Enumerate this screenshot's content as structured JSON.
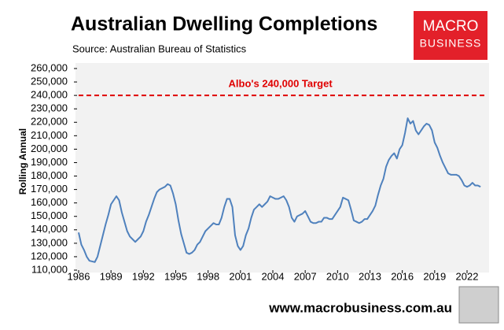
{
  "chart_data": {
    "type": "line",
    "title": "Australian Dwelling Completions",
    "subtitle": "Source: Australian Bureau of Statistics",
    "ylabel": "Rolling Annual",
    "logo": {
      "line1": "MACRO",
      "line2": "BUSINESS"
    },
    "footer": "www.macrobusiness.com.au",
    "target": {
      "value": 240000,
      "label": "Albo's 240,000 Target",
      "color": "#e00000"
    },
    "xlim": [
      1986,
      2023.75
    ],
    "xticks": [
      1986,
      1989,
      1992,
      1995,
      1998,
      2001,
      2004,
      2007,
      2010,
      2013,
      2016,
      2019,
      2022
    ],
    "ylim": [
      110000,
      260000
    ],
    "yticks": [
      {
        "value": 110000,
        "label": "110,000"
      },
      {
        "value": 120000,
        "label": "120,000"
      },
      {
        "value": 130000,
        "label": "130,000"
      },
      {
        "value": 140000,
        "label": "140,000"
      },
      {
        "value": 150000,
        "label": "150,000"
      },
      {
        "value": 160000,
        "label": "160,000"
      },
      {
        "value": 170000,
        "label": "170,000"
      },
      {
        "value": 180000,
        "label": "180,000"
      },
      {
        "value": 190000,
        "label": "190,000"
      },
      {
        "value": 200000,
        "label": "200,000"
      },
      {
        "value": 210000,
        "label": "210,000"
      },
      {
        "value": 220000,
        "label": "220,000"
      },
      {
        "value": 230000,
        "label": "230,000"
      },
      {
        "value": 240000,
        "label": "240,000"
      },
      {
        "value": 250000,
        "label": "250,000"
      },
      {
        "value": 260000,
        "label": "260,000"
      }
    ],
    "color": "#4f81bd",
    "x": [
      1986,
      1986.25,
      1986.5,
      1986.75,
      1987,
      1987.25,
      1987.5,
      1987.75,
      1988,
      1988.25,
      1988.5,
      1988.75,
      1989,
      1989.25,
      1989.5,
      1989.75,
      1990,
      1990.25,
      1990.5,
      1990.75,
      1991,
      1991.25,
      1991.5,
      1991.75,
      1992,
      1992.25,
      1992.5,
      1992.75,
      1993,
      1993.25,
      1993.5,
      1993.75,
      1994,
      1994.25,
      1994.5,
      1994.75,
      1995,
      1995.25,
      1995.5,
      1995.75,
      1996,
      1996.25,
      1996.5,
      1996.75,
      1997,
      1997.25,
      1997.5,
      1997.75,
      1998,
      1998.25,
      1998.5,
      1998.75,
      1999,
      1999.25,
      1999.5,
      1999.75,
      2000,
      2000.25,
      2000.5,
      2000.75,
      2001,
      2001.25,
      2001.5,
      2001.75,
      2002,
      2002.25,
      2002.5,
      2002.75,
      2003,
      2003.25,
      2003.5,
      2003.75,
      2004,
      2004.25,
      2004.5,
      2004.75,
      2005,
      2005.25,
      2005.5,
      2005.75,
      2006,
      2006.25,
      2006.5,
      2006.75,
      2007,
      2007.25,
      2007.5,
      2007.75,
      2008,
      2008.25,
      2008.5,
      2008.75,
      2009,
      2009.25,
      2009.5,
      2009.75,
      2010,
      2010.25,
      2010.5,
      2010.75,
      2011,
      2011.25,
      2011.5,
      2011.75,
      2012,
      2012.25,
      2012.5,
      2012.75,
      2013,
      2013.25,
      2013.5,
      2013.75,
      2014,
      2014.25,
      2014.5,
      2014.75,
      2015,
      2015.25,
      2015.5,
      2015.75,
      2016,
      2016.25,
      2016.5,
      2016.75,
      2017,
      2017.25,
      2017.5,
      2017.75,
      2018,
      2018.25,
      2018.5,
      2018.75,
      2019,
      2019.25,
      2019.5,
      2019.75,
      2020,
      2020.25,
      2020.5,
      2020.75,
      2021,
      2021.25,
      2021.5,
      2021.75,
      2022,
      2022.25,
      2022.5,
      2022.75,
      2023,
      2023.25
    ],
    "values": [
      138000,
      129000,
      125000,
      120000,
      117000,
      116500,
      116000,
      120000,
      128000,
      136000,
      144000,
      151000,
      159000,
      162000,
      165000,
      162000,
      153000,
      146000,
      139000,
      135000,
      133000,
      131000,
      133000,
      135000,
      139000,
      146000,
      151000,
      157000,
      163000,
      168000,
      170000,
      171000,
      172000,
      174000,
      173000,
      167000,
      159000,
      147000,
      137000,
      130000,
      123000,
      122000,
      123000,
      125000,
      129000,
      131000,
      135000,
      139000,
      141000,
      143000,
      145000,
      144000,
      144000,
      149000,
      157000,
      163000,
      163000,
      157000,
      136000,
      128000,
      125000,
      128000,
      136000,
      141000,
      149000,
      155000,
      157000,
      159000,
      157000,
      159000,
      161000,
      165000,
      164000,
      163000,
      163000,
      164000,
      165000,
      162000,
      157000,
      149000,
      146000,
      150000,
      151000,
      152000,
      154000,
      150000,
      146000,
      145000,
      145000,
      146000,
      146000,
      149000,
      149000,
      148000,
      148000,
      151000,
      154000,
      157000,
      164000,
      163000,
      162000,
      155000,
      147000,
      146000,
      145000,
      146000,
      148000,
      148000,
      151000,
      154000,
      158000,
      166000,
      173000,
      178000,
      187000,
      192000,
      195000,
      197000,
      193000,
      200000,
      203000,
      212000,
      223000,
      219000,
      221000,
      214000,
      211000,
      214000,
      217000,
      219000,
      218000,
      214000,
      205000,
      201000,
      195000,
      190000,
      186000,
      182000,
      181000,
      181000,
      181000,
      180000,
      177000,
      173000,
      172000,
      173000,
      175000,
      173000,
      173000,
      172000
    ]
  }
}
